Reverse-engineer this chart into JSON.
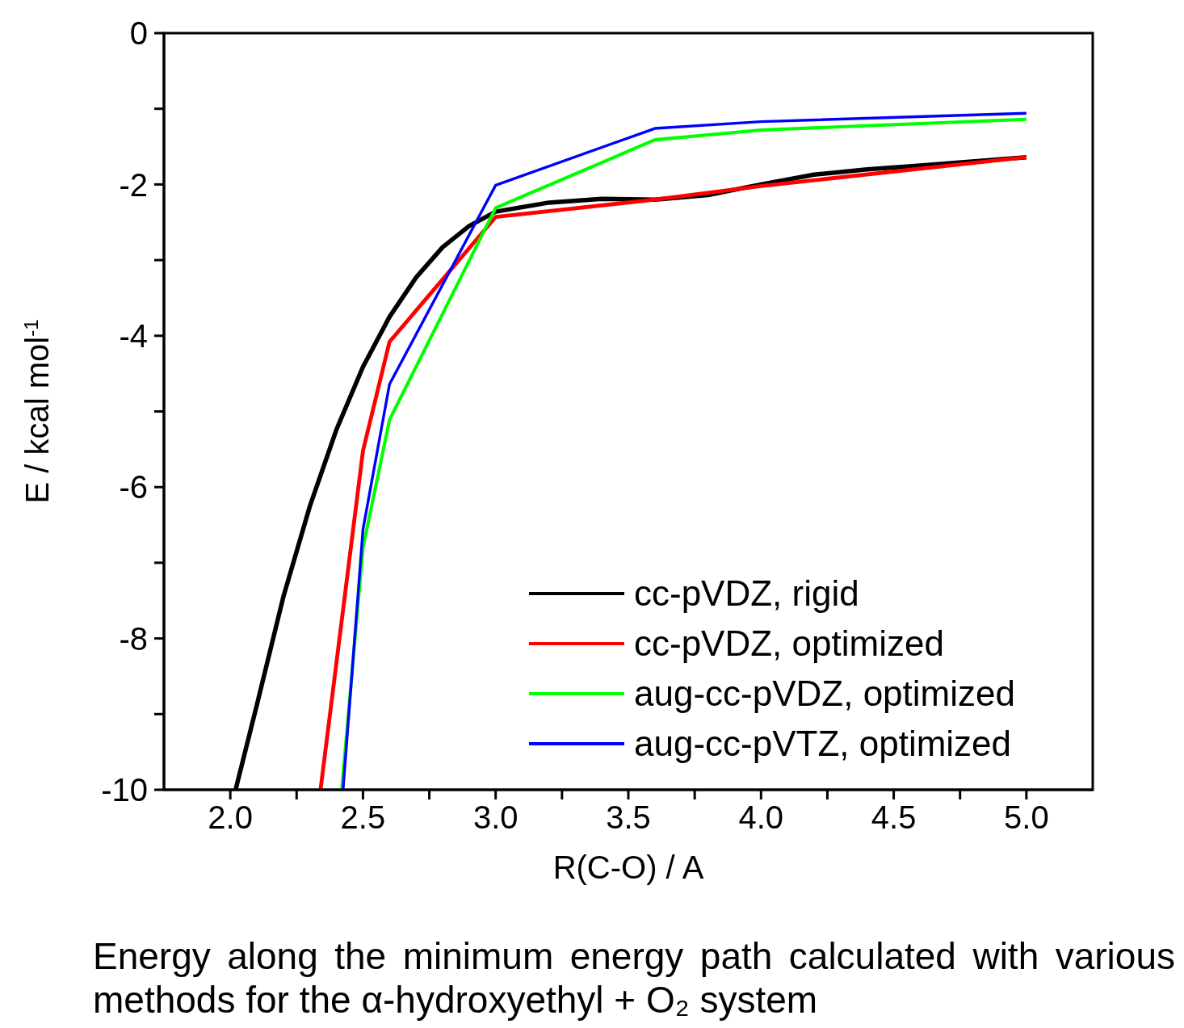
{
  "chart_data": {
    "type": "line",
    "xlabel": "R(C-O) / A",
    "ylabel": "E / kcal mol$^{-1}$",
    "xlim": [
      1.75,
      5.25
    ],
    "ylim": [
      -10,
      0
    ],
    "xticks": [
      {
        "value": 2,
        "label": "2.0"
      },
      {
        "value": 2.25,
        "label": null
      },
      {
        "value": 2.5,
        "label": "2.5"
      },
      {
        "value": 2.75,
        "label": null
      },
      {
        "value": 3,
        "label": "3.0"
      },
      {
        "value": 3.25,
        "label": null
      },
      {
        "value": 3.5,
        "label": "3.5"
      },
      {
        "value": 3.75,
        "label": null
      },
      {
        "value": 4,
        "label": "4.0"
      },
      {
        "value": 4.25,
        "label": null
      },
      {
        "value": 4.5,
        "label": "4.5"
      },
      {
        "value": 4.75,
        "label": null
      },
      {
        "value": 5,
        "label": "5.0"
      }
    ],
    "yticks": [
      -10,
      {
        "value": -9,
        "label": null
      },
      -8,
      {
        "value": -7,
        "label": null
      },
      -6,
      {
        "value": -5,
        "label": null
      },
      -4,
      {
        "value": -3,
        "label": null
      },
      -2,
      {
        "value": -1,
        "label": null
      },
      0
    ],
    "grid": false,
    "legend": "bottom right",
    "marker": "none",
    "line_style": "solid",
    "series": [
      {
        "name": "cc-pVDZ, rigid",
        "color": "#000000",
        "x": [
          2.02,
          2.1,
          2.2,
          2.3,
          2.4,
          2.5,
          2.6,
          2.7,
          2.8,
          2.9,
          3.0,
          3.2,
          3.4,
          3.6,
          3.8,
          4.0,
          4.2,
          4.4,
          4.6,
          5.0
        ],
        "values": [
          -10,
          -8.88,
          -7.45,
          -6.25,
          -5.24,
          -4.41,
          -3.75,
          -3.23,
          -2.83,
          -2.55,
          -2.36,
          -2.24,
          -2.19,
          -2.2,
          -2.14,
          -2.0,
          -1.87,
          -1.8,
          -1.75,
          -1.64
        ]
      },
      {
        "name": "cc-pVDZ, optimized",
        "color": "#ff0000",
        "x": [
          2.34,
          2.5,
          2.6,
          3.0,
          3.6,
          4.0,
          5.0
        ],
        "values": [
          -10,
          -5.52,
          -4.08,
          -2.43,
          -2.2,
          -2.02,
          -1.64
        ]
      },
      {
        "name": "aug-cc-pVDZ, optimized",
        "color": "#00ff00",
        "x": [
          2.42,
          2.5,
          2.6,
          3.0,
          3.6,
          4.0,
          5.0
        ],
        "values": [
          -10,
          -6.8,
          -5.11,
          -2.31,
          -1.41,
          -1.28,
          -1.14
        ]
      },
      {
        "name": "aug-cc-pVTZ, optimized",
        "color": "#0000ff",
        "x": [
          2.425,
          2.5,
          2.6,
          3.0,
          3.6,
          4.0,
          5.0
        ],
        "values": [
          -10,
          -6.56,
          -4.64,
          -2.01,
          -1.26,
          -1.17,
          -1.06
        ]
      }
    ],
    "annotations": [
      "Energy along the minimum energy path calculated with various methods for the α-hydroxyethyl + O₂ system"
    ]
  }
}
